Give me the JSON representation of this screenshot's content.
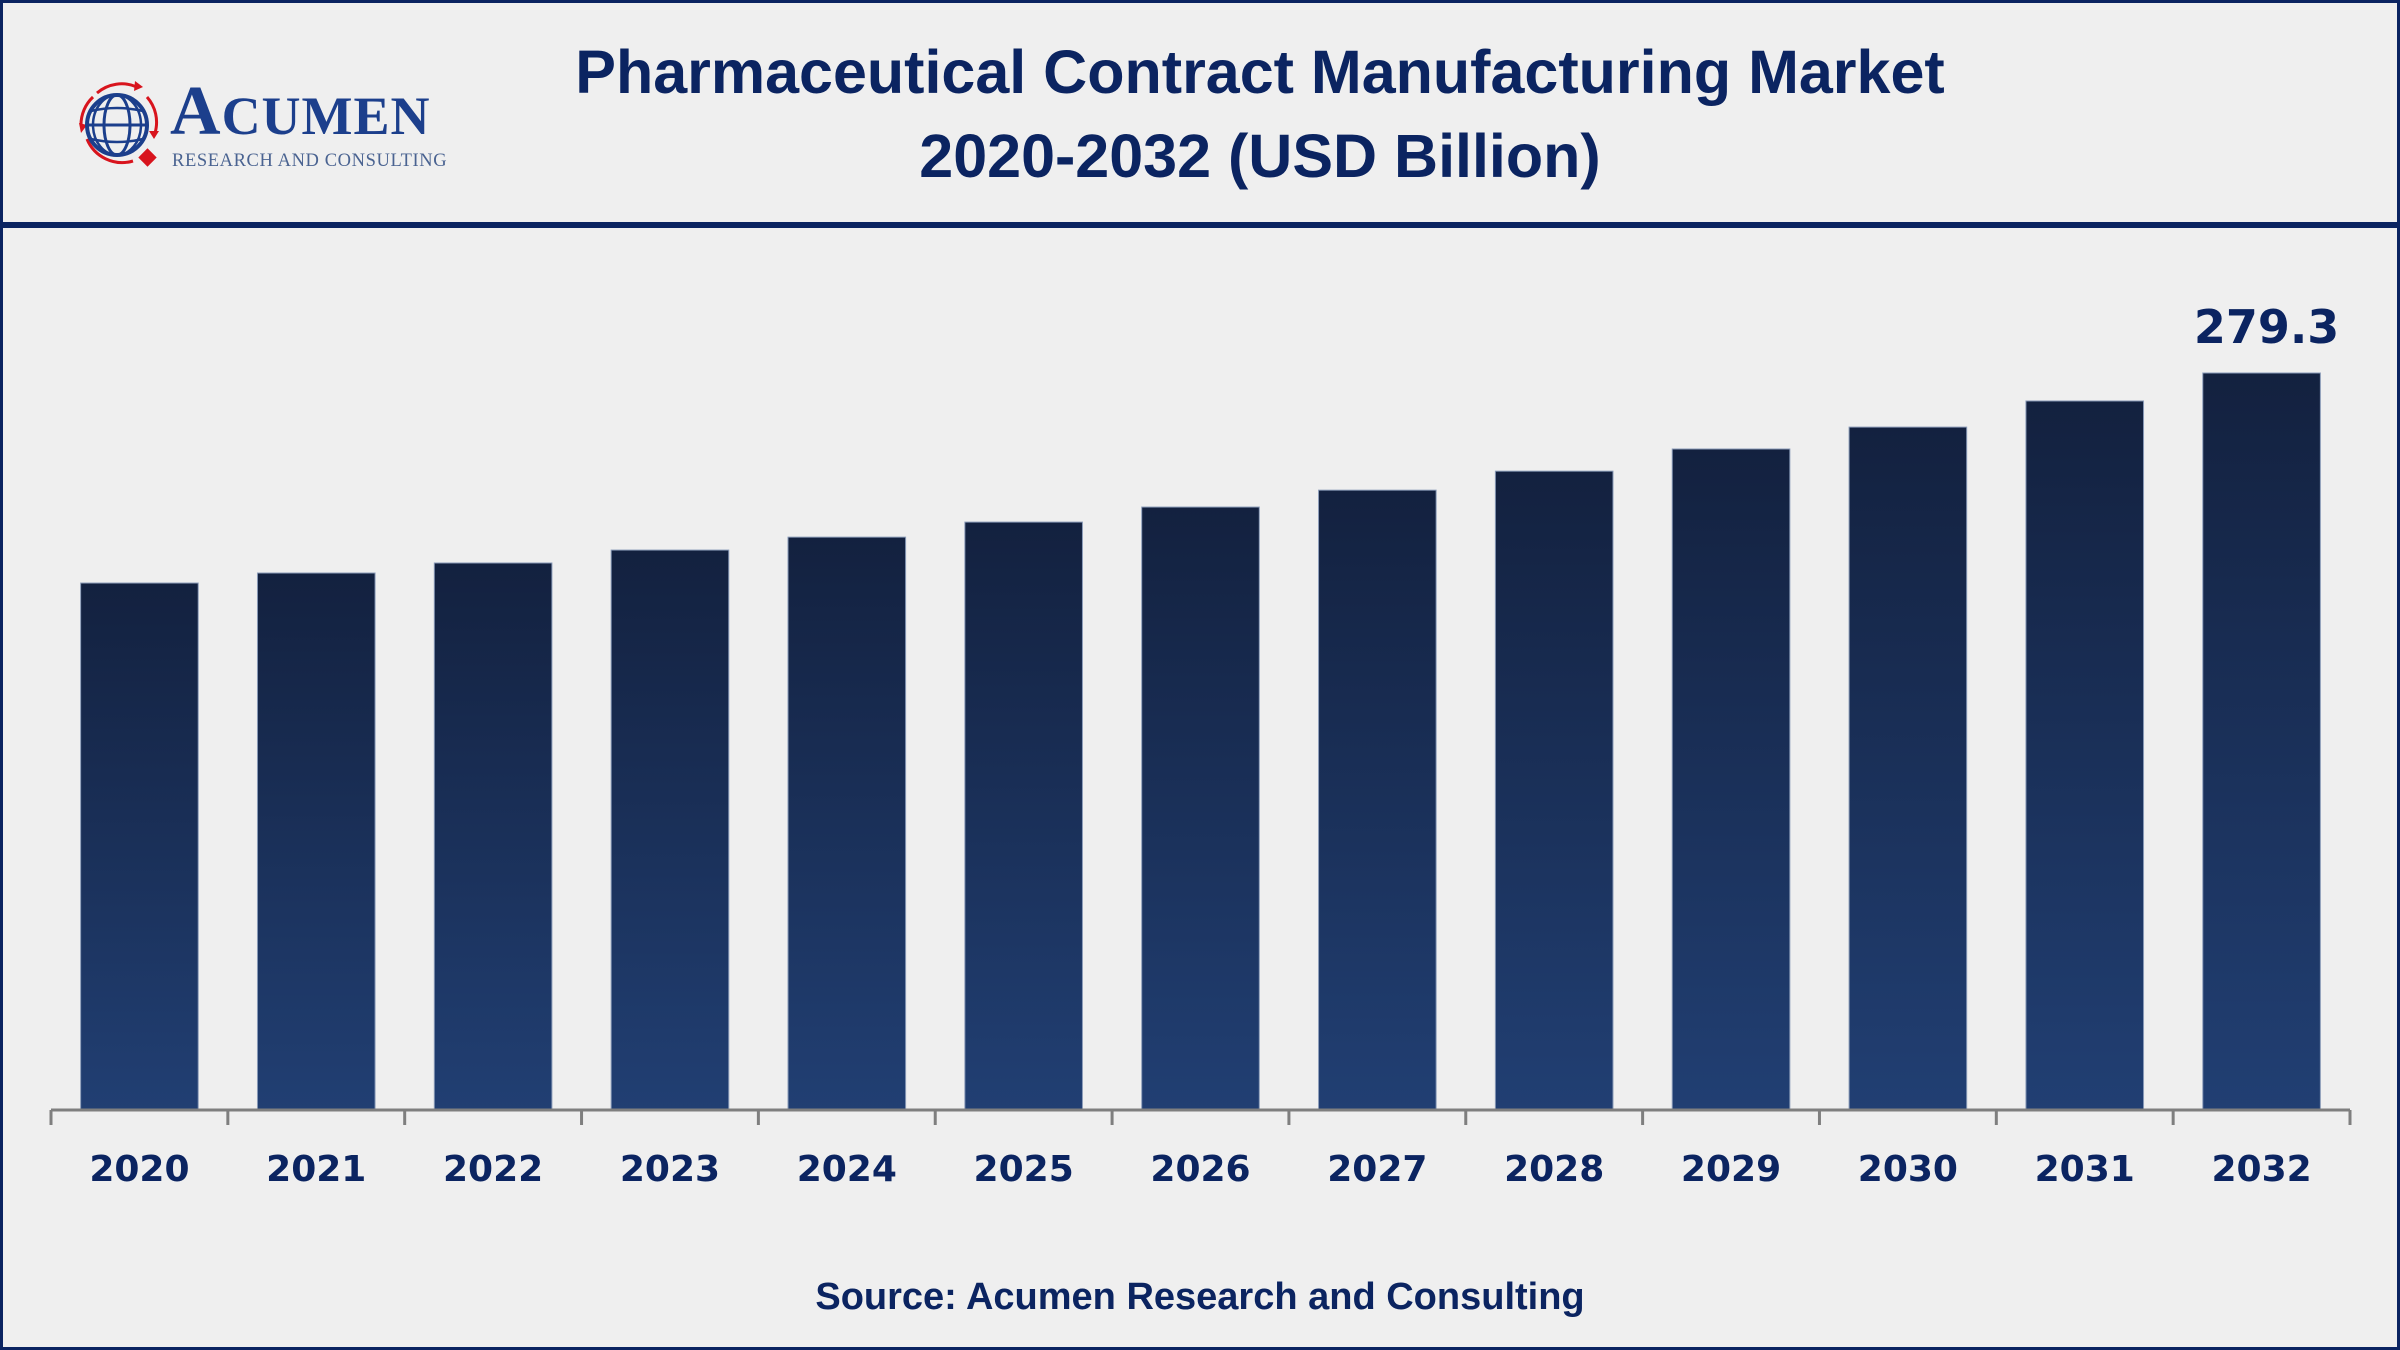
{
  "header": {
    "title_line1": "Pharmaceutical Contract Manufacturing Market",
    "title_line2": "2020-2032 (USD Billion)",
    "logo": {
      "brand_first": "A",
      "brand_rest": "CUMEN",
      "tagline": "RESEARCH AND CONSULTING",
      "icon": "globe-icon"
    }
  },
  "footer": {
    "source": "Source: Acumen Research and Consulting"
  },
  "colors": {
    "primary": "#0b2461",
    "bar_top": "#13213f",
    "bar_bottom": "#213f73",
    "axis": "#7f7f7f",
    "background": "#efefef",
    "logo_red": "#d8141d",
    "logo_blue": "#1c3f8c"
  },
  "chart_data": {
    "type": "bar",
    "title": "Pharmaceutical Contract Manufacturing Market 2020-2032 (USD Billion)",
    "xlabel": "",
    "ylabel": "USD Billion",
    "categories": [
      "2020",
      "2021",
      "2022",
      "2023",
      "2024",
      "2025",
      "2026",
      "2027",
      "2028",
      "2029",
      "2030",
      "2031",
      "2032"
    ],
    "values": [
      199.7,
      203.5,
      207.3,
      212.2,
      217.1,
      222.8,
      228.5,
      234.9,
      242.1,
      250.5,
      258.8,
      268.7,
      279.3
    ],
    "data_labels": [
      {
        "category": "2032",
        "text": "279.3"
      }
    ],
    "ylim": [
      0,
      279.3
    ],
    "grid": false,
    "legend": "none",
    "y_axis_visible": false
  }
}
